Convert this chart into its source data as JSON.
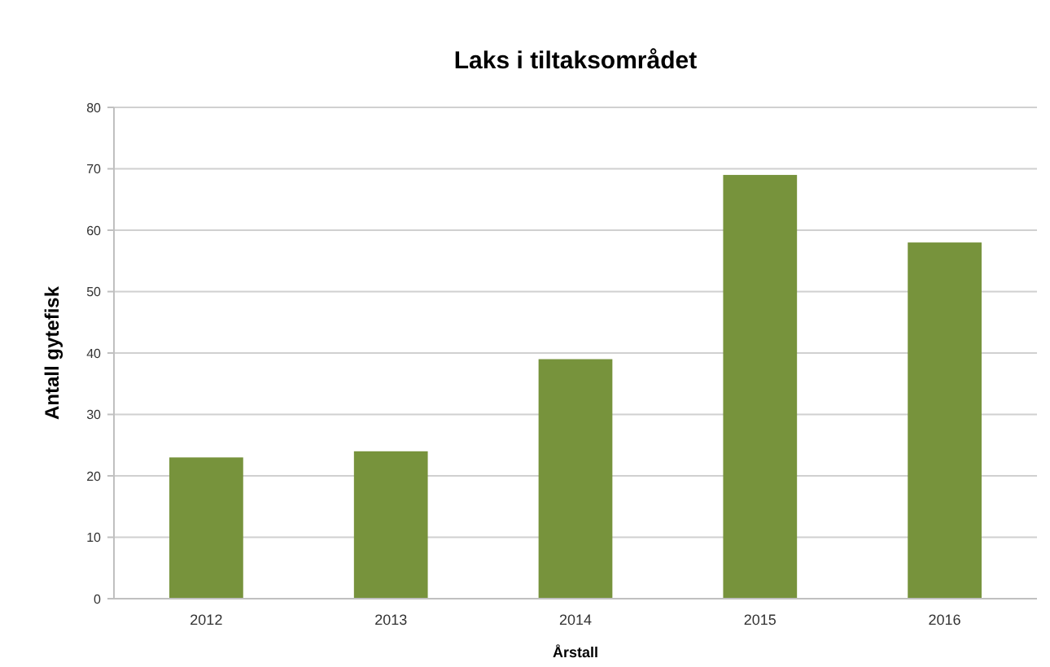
{
  "chart_data": {
    "type": "bar",
    "title": "Laks i tiltaksområdet",
    "xlabel": "Årstall",
    "ylabel": "Antall gytefisk",
    "categories": [
      "2012",
      "2013",
      "2014",
      "2015",
      "2016"
    ],
    "values": [
      23,
      24,
      39,
      69,
      58
    ],
    "color": "#77933c",
    "ylim": [
      0,
      80
    ],
    "yticks": [
      0,
      10,
      20,
      30,
      40,
      50,
      60,
      70,
      80
    ],
    "grid": "y"
  }
}
